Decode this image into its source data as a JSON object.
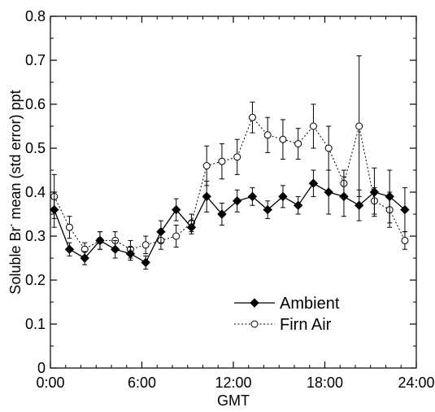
{
  "chart_data": {
    "type": "line",
    "xlabel": "GMT",
    "ylabel_main": "Soluble Br",
    "ylabel_sup": "-",
    "ylabel_rest": " mean (std error) ppt",
    "xlim": [
      0,
      24
    ],
    "ylim": [
      0,
      0.8
    ],
    "x_ticks": [
      0,
      6,
      12,
      18,
      24
    ],
    "x_tick_labels": [
      "0:00",
      "6:00",
      "12:00",
      "18:00",
      "24:00"
    ],
    "y_ticks": [
      0,
      0.1,
      0.2,
      0.3,
      0.4,
      0.5,
      0.6,
      0.7,
      0.8
    ],
    "y_tick_labels": [
      "0",
      "0.1",
      "0.2",
      "0.3",
      "0.4",
      "0.5",
      "0.6",
      "0.7",
      "0.8"
    ],
    "grid": false,
    "legend_position": "lower-right",
    "series": [
      {
        "name": "Ambient",
        "marker": "filled-diamond",
        "line": "solid",
        "x": [
          0.25,
          1.25,
          2.25,
          3.25,
          4.25,
          5.25,
          6.25,
          7.25,
          8.25,
          9.25,
          10.25,
          11.25,
          12.25,
          13.25,
          14.25,
          15.25,
          16.25,
          17.25,
          18.25,
          19.25,
          20.25,
          21.25,
          22.25,
          23.25
        ],
        "y": [
          0.36,
          0.27,
          0.25,
          0.29,
          0.27,
          0.26,
          0.24,
          0.31,
          0.36,
          0.32,
          0.39,
          0.35,
          0.38,
          0.39,
          0.36,
          0.39,
          0.37,
          0.42,
          0.4,
          0.39,
          0.37,
          0.4,
          0.39,
          0.36
        ],
        "err": [
          0.04,
          0.015,
          0.015,
          0.02,
          0.02,
          0.015,
          0.015,
          0.025,
          0.025,
          0.015,
          0.035,
          0.025,
          0.025,
          0.02,
          0.02,
          0.025,
          0.02,
          0.03,
          0.05,
          0.045,
          0.035,
          0.055,
          0.06,
          0.05
        ]
      },
      {
        "name": "Firn Air",
        "marker": "open-circle",
        "line": "dotted",
        "x": [
          0.25,
          1.25,
          2.25,
          3.25,
          4.25,
          5.25,
          6.25,
          7.25,
          8.25,
          9.25,
          10.25,
          11.25,
          12.25,
          13.25,
          14.25,
          15.25,
          16.25,
          17.25,
          18.25,
          19.25,
          20.25,
          21.25,
          22.25,
          23.25
        ],
        "y": [
          0.39,
          0.32,
          0.27,
          0.29,
          0.29,
          0.27,
          0.28,
          0.29,
          0.3,
          0.33,
          0.46,
          0.47,
          0.48,
          0.57,
          0.53,
          0.52,
          0.51,
          0.55,
          0.5,
          0.42,
          0.55,
          0.38,
          0.36,
          0.29
        ],
        "err": [
          0.05,
          0.025,
          0.015,
          0.02,
          0.02,
          0.02,
          0.02,
          0.02,
          0.025,
          0.02,
          0.045,
          0.04,
          0.04,
          0.035,
          0.04,
          0.045,
          0.035,
          0.05,
          0.05,
          0.03,
          0.16,
          0.03,
          0.04,
          0.02
        ]
      }
    ]
  }
}
